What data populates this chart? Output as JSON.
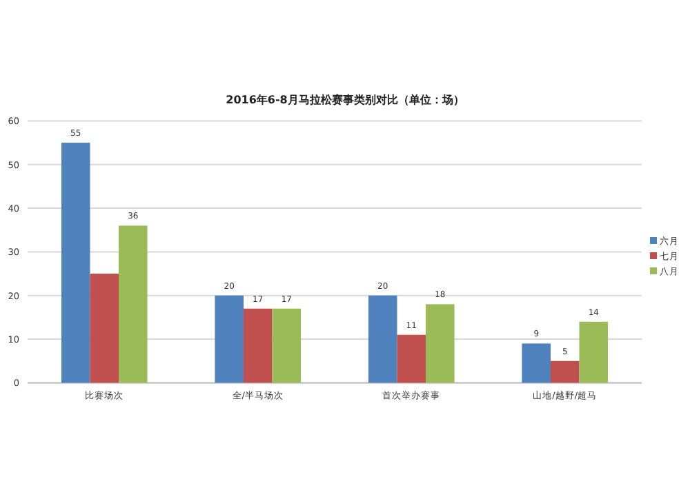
{
  "chart_data": {
    "type": "bar",
    "title": "2016年6-8月马拉松赛事类别对比（单位：场）",
    "categories": [
      "比赛场次",
      "全/半马场次",
      "首次举办赛事",
      "山地/越野/超马"
    ],
    "series": [
      {
        "name": "六月",
        "color": "#4f81bd",
        "values": [
          55,
          20,
          20,
          9
        ],
        "value_labels": [
          "55",
          "20",
          "20",
          "9"
        ]
      },
      {
        "name": "七月",
        "color": "#c0504d",
        "values": [
          25,
          17,
          11,
          5
        ],
        "value_labels": [
          null,
          "17",
          "11",
          "5"
        ]
      },
      {
        "name": "八月",
        "color": "#9bbb59",
        "values": [
          36,
          17,
          18,
          14
        ],
        "value_labels": [
          "36",
          "17",
          "18",
          "14"
        ]
      }
    ],
    "ylim": [
      0,
      60
    ],
    "yticks": [
      0,
      10,
      20,
      30,
      40,
      50,
      60
    ],
    "grid": "y",
    "legend": "right"
  }
}
